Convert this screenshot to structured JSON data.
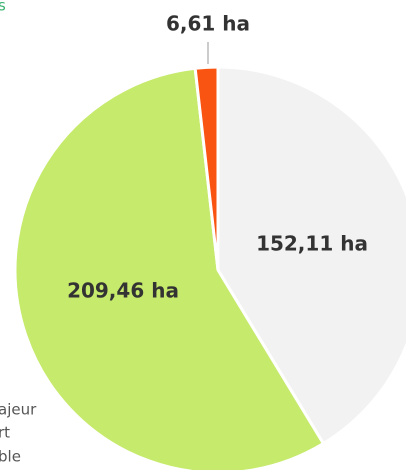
{
  "chart_data": {
    "type": "pie",
    "categories": [
      null,
      null,
      null
    ],
    "values": [
      152.11,
      209.46,
      6.61
    ],
    "value_labels": [
      "152,11 ha",
      "209,46 ha",
      "6,61 ha"
    ],
    "colors": [
      "#f2f2f2",
      "#c6ea6c",
      "#fa5412"
    ],
    "annotations": [
      "s",
      "ajeur",
      "rt",
      "ble"
    ]
  }
}
